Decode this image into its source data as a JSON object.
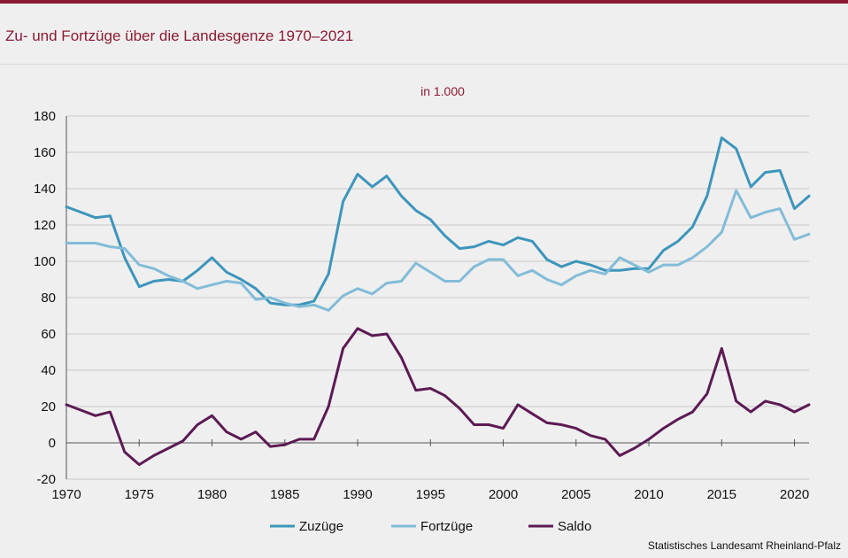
{
  "header": {
    "title": "Zu- und Fortzüge über die Landesgenze 1970–2021"
  },
  "footer": {
    "source": "Statistisches Landesamt Rheinland-Pfalz"
  },
  "chart_data": {
    "type": "line",
    "title": "Zu- und Fortzüge über die Landesgenze 1970–2021",
    "subtitle": "in 1.000",
    "xlabel": "",
    "ylabel": "",
    "xlim": [
      1970,
      2021
    ],
    "ylim": [
      -20,
      180
    ],
    "y_ticks": [
      -20,
      0,
      20,
      40,
      60,
      80,
      100,
      120,
      140,
      160,
      180
    ],
    "x_ticks": [
      1970,
      1975,
      1980,
      1985,
      1990,
      1995,
      2000,
      2005,
      2010,
      2015,
      2020
    ],
    "x": [
      1970,
      1971,
      1972,
      1973,
      1974,
      1975,
      1976,
      1977,
      1978,
      1979,
      1980,
      1981,
      1982,
      1983,
      1984,
      1985,
      1986,
      1987,
      1988,
      1989,
      1990,
      1991,
      1992,
      1993,
      1994,
      1995,
      1996,
      1997,
      1998,
      1999,
      2000,
      2001,
      2002,
      2003,
      2004,
      2005,
      2006,
      2007,
      2008,
      2009,
      2010,
      2011,
      2012,
      2013,
      2014,
      2015,
      2016,
      2017,
      2018,
      2019,
      2020,
      2021
    ],
    "series": [
      {
        "name": "Zuzüge",
        "color": "#3d95bb",
        "values": [
          130,
          127,
          124,
          125,
          102,
          86,
          89,
          90,
          89,
          95,
          102,
          94,
          90,
          85,
          77,
          76,
          76,
          78,
          93,
          133,
          148,
          141,
          147,
          136,
          128,
          123,
          114,
          107,
          108,
          111,
          109,
          113,
          111,
          101,
          97,
          100,
          98,
          95,
          95,
          96,
          96,
          106,
          111,
          119,
          136,
          168,
          162,
          141,
          149,
          150,
          129,
          136
        ]
      },
      {
        "name": "Fortzüge",
        "color": "#82bcd8",
        "values": [
          110,
          110,
          110,
          108,
          107,
          98,
          96,
          92,
          89,
          85,
          87,
          89,
          88,
          79,
          80,
          77,
          75,
          76,
          73,
          81,
          85,
          82,
          88,
          89,
          99,
          94,
          89,
          89,
          97,
          101,
          101,
          92,
          95,
          90,
          87,
          92,
          95,
          93,
          102,
          98,
          94,
          98,
          98,
          102,
          108,
          116,
          139,
          124,
          127,
          129,
          112,
          115
        ]
      },
      {
        "name": "Saldo",
        "color": "#5c1a54",
        "values": [
          21,
          18,
          15,
          17,
          -5,
          -12,
          -7,
          -3,
          1,
          10,
          15,
          6,
          2,
          6,
          -2,
          -1,
          2,
          2,
          20,
          52,
          63,
          59,
          60,
          47,
          29,
          30,
          26,
          19,
          10,
          10,
          8,
          21,
          16,
          11,
          10,
          8,
          4,
          2,
          -7,
          -3,
          2,
          8,
          13,
          17,
          27,
          52,
          23,
          17,
          23,
          21,
          17,
          21
        ]
      }
    ],
    "legend": [
      {
        "name": "Zuzüge",
        "color": "#3d95bb"
      },
      {
        "name": "Fortzüge",
        "color": "#82bcd8"
      },
      {
        "name": "Saldo",
        "color": "#5c1a54"
      }
    ],
    "legend_position": "bottom",
    "grid": true
  }
}
